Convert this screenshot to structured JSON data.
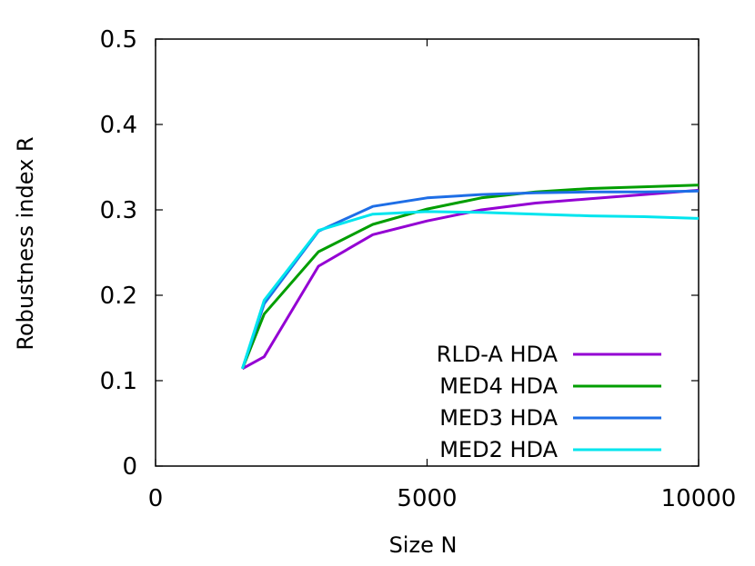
{
  "chart_data": {
    "type": "line",
    "xlabel": "Size N",
    "ylabel": "Robustness index R",
    "xlim": [
      0,
      10000
    ],
    "ylim": [
      0,
      0.5
    ],
    "x_ticks": [
      0,
      5000,
      10000
    ],
    "y_ticks": [
      0,
      0.1,
      0.2,
      0.3,
      0.4,
      0.5
    ],
    "x_tick_labels": [
      "0",
      "5000",
      "10000"
    ],
    "y_tick_labels": [
      "0",
      "0.1",
      "0.2",
      "0.3",
      "0.4",
      "0.5"
    ],
    "grid": false,
    "legend_position": "bottom-right",
    "series": [
      {
        "name": "RLD-A HDA",
        "color": "#9400d3",
        "x": [
          1600,
          2000,
          3000,
          4000,
          5000,
          6000,
          7000,
          8000,
          9000,
          10000
        ],
        "y": [
          0.114,
          0.128,
          0.234,
          0.271,
          0.287,
          0.3,
          0.308,
          0.313,
          0.318,
          0.323
        ]
      },
      {
        "name": "MED4 HDA",
        "color": "#009e00",
        "x": [
          1600,
          2000,
          3000,
          4000,
          5000,
          6000,
          7000,
          8000,
          9000,
          10000
        ],
        "y": [
          0.114,
          0.178,
          0.251,
          0.283,
          0.301,
          0.314,
          0.321,
          0.325,
          0.327,
          0.329
        ]
      },
      {
        "name": "MED3 HDA",
        "color": "#1e6ee6",
        "x": [
          1600,
          2000,
          3000,
          4000,
          5000,
          6000,
          7000,
          8000,
          9000,
          10000
        ],
        "y": [
          0.114,
          0.19,
          0.275,
          0.304,
          0.314,
          0.318,
          0.32,
          0.321,
          0.321,
          0.322
        ]
      },
      {
        "name": "MED2 HDA",
        "color": "#00e5ee",
        "x": [
          1600,
          2000,
          3000,
          4000,
          5000,
          6000,
          7000,
          8000,
          9000,
          10000
        ],
        "y": [
          0.114,
          0.194,
          0.276,
          0.295,
          0.298,
          0.297,
          0.295,
          0.293,
          0.292,
          0.29
        ]
      }
    ]
  }
}
